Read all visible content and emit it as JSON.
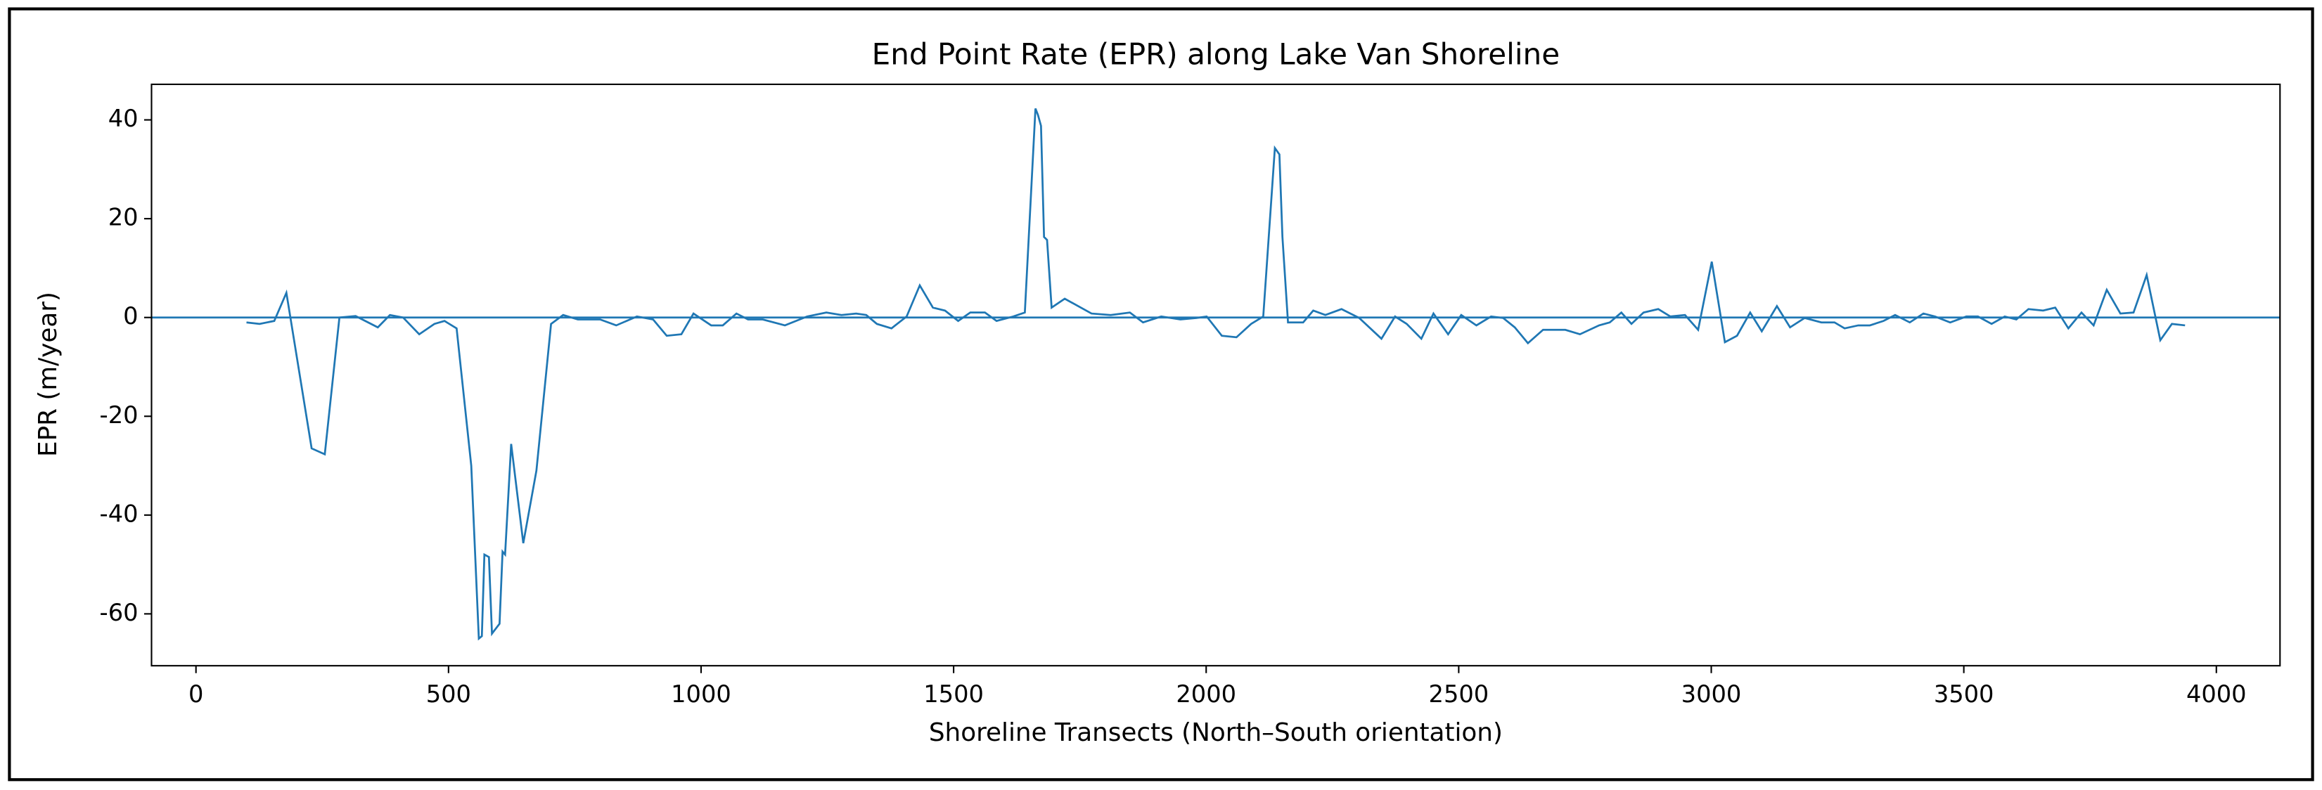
{
  "chart_data": {
    "type": "line",
    "title": "End Point Rate (EPR) along Lake Van Shoreline",
    "x_label": "Shoreline Transects (North–South orientation)",
    "y_label": "EPR (m/year)",
    "x": [
      100,
      126,
      155,
      179,
      229,
      255,
      284,
      316,
      360,
      384,
      410,
      442,
      472,
      492,
      516,
      545,
      560,
      566,
      571,
      580,
      586,
      601,
      607,
      612,
      624,
      648,
      674,
      703,
      727,
      756,
      800,
      832,
      873,
      905,
      932,
      961,
      985,
      1020,
      1043,
      1070,
      1093,
      1122,
      1166,
      1210,
      1248,
      1278,
      1307,
      1327,
      1348,
      1377,
      1407,
      1433,
      1459,
      1483,
      1509,
      1533,
      1562,
      1585,
      1618,
      1641,
      1662,
      1667,
      1673,
      1679,
      1685,
      1694,
      1720,
      1773,
      1811,
      1849,
      1875,
      1911,
      1949,
      1981,
      2001,
      2031,
      2060,
      2089,
      2113,
      2136,
      2145,
      2151,
      2162,
      2192,
      2212,
      2236,
      2268,
      2303,
      2347,
      2374,
      2397,
      2426,
      2450,
      2479,
      2505,
      2535,
      2564,
      2588,
      2611,
      2637,
      2667,
      2711,
      2740,
      2778,
      2799,
      2822,
      2842,
      2866,
      2895,
      2919,
      2948,
      2974,
      3001,
      3027,
      3051,
      3077,
      3100,
      3130,
      3156,
      3185,
      3218,
      3244,
      3264,
      3291,
      3314,
      3341,
      3364,
      3393,
      3420,
      3443,
      3473,
      3505,
      3528,
      3555,
      3581,
      3604,
      3628,
      3657,
      3681,
      3707,
      3733,
      3757,
      3783,
      3810,
      3836,
      3862,
      3889,
      3912,
      3938
    ],
    "series": [
      {
        "name": "EPR",
        "color": "#1f77b4",
        "values": [
          -1,
          -1.3,
          -0.7,
          5,
          -26.5,
          -27.7,
          0,
          0.3,
          -2,
          0.5,
          0,
          -3.4,
          -1.3,
          -0.7,
          -2.2,
          -30,
          -65,
          -64.5,
          -48,
          -48.5,
          -64,
          -62,
          -47.4,
          -48,
          -25.6,
          -45.7,
          -31,
          -1.3,
          0.5,
          -0.4,
          -0.4,
          -1.6,
          0.2,
          -0.4,
          -3.7,
          -3.4,
          0.8,
          -1.6,
          -1.6,
          0.8,
          -0.4,
          -0.4,
          -1.6,
          0.2,
          1,
          0.5,
          0.8,
          0.5,
          -1.3,
          -2.2,
          0.2,
          6.5,
          2,
          1.4,
          -0.7,
          1,
          1,
          -0.7,
          0.2,
          1,
          42.3,
          41,
          38.8,
          16.3,
          15.7,
          2,
          3.8,
          0.8,
          0.5,
          1,
          -1,
          0.2,
          -0.4,
          -0.1,
          0.2,
          -3.7,
          -4,
          -1.3,
          0.2,
          34.3,
          33,
          16.3,
          -1,
          -1,
          1.4,
          0.5,
          1.7,
          -0.1,
          -4.3,
          0.2,
          -1.3,
          -4.3,
          0.8,
          -3.4,
          0.5,
          -1.6,
          0.2,
          -0.1,
          -2,
          -5.2,
          -2.5,
          -2.5,
          -3.4,
          -1.6,
          -1,
          1,
          -1.3,
          1,
          1.7,
          0.2,
          0.5,
          -2.5,
          11.3,
          -5,
          -3.7,
          1,
          -2.8,
          2.3,
          -2,
          -0.1,
          -1,
          -1,
          -2.2,
          -1.6,
          -1.6,
          -0.7,
          0.5,
          -1,
          0.8,
          0.2,
          -1,
          0.2,
          0.2,
          -1.3,
          0.2,
          -0.4,
          1.7,
          1.4,
          2,
          -2.2,
          1,
          -1.6,
          5.6,
          0.8,
          1,
          8.6,
          -4.6,
          -1.3,
          -1.6
        ]
      }
    ],
    "reference_line": 0,
    "xlim": [
      -88,
      4126
    ],
    "ylim": [
      -70.5,
      47.2
    ],
    "xticks": [
      0,
      500,
      1000,
      1500,
      2000,
      2500,
      3000,
      3500,
      4000
    ],
    "yticks": [
      -60,
      -40,
      -20,
      0,
      20,
      40
    ],
    "grid": false
  }
}
